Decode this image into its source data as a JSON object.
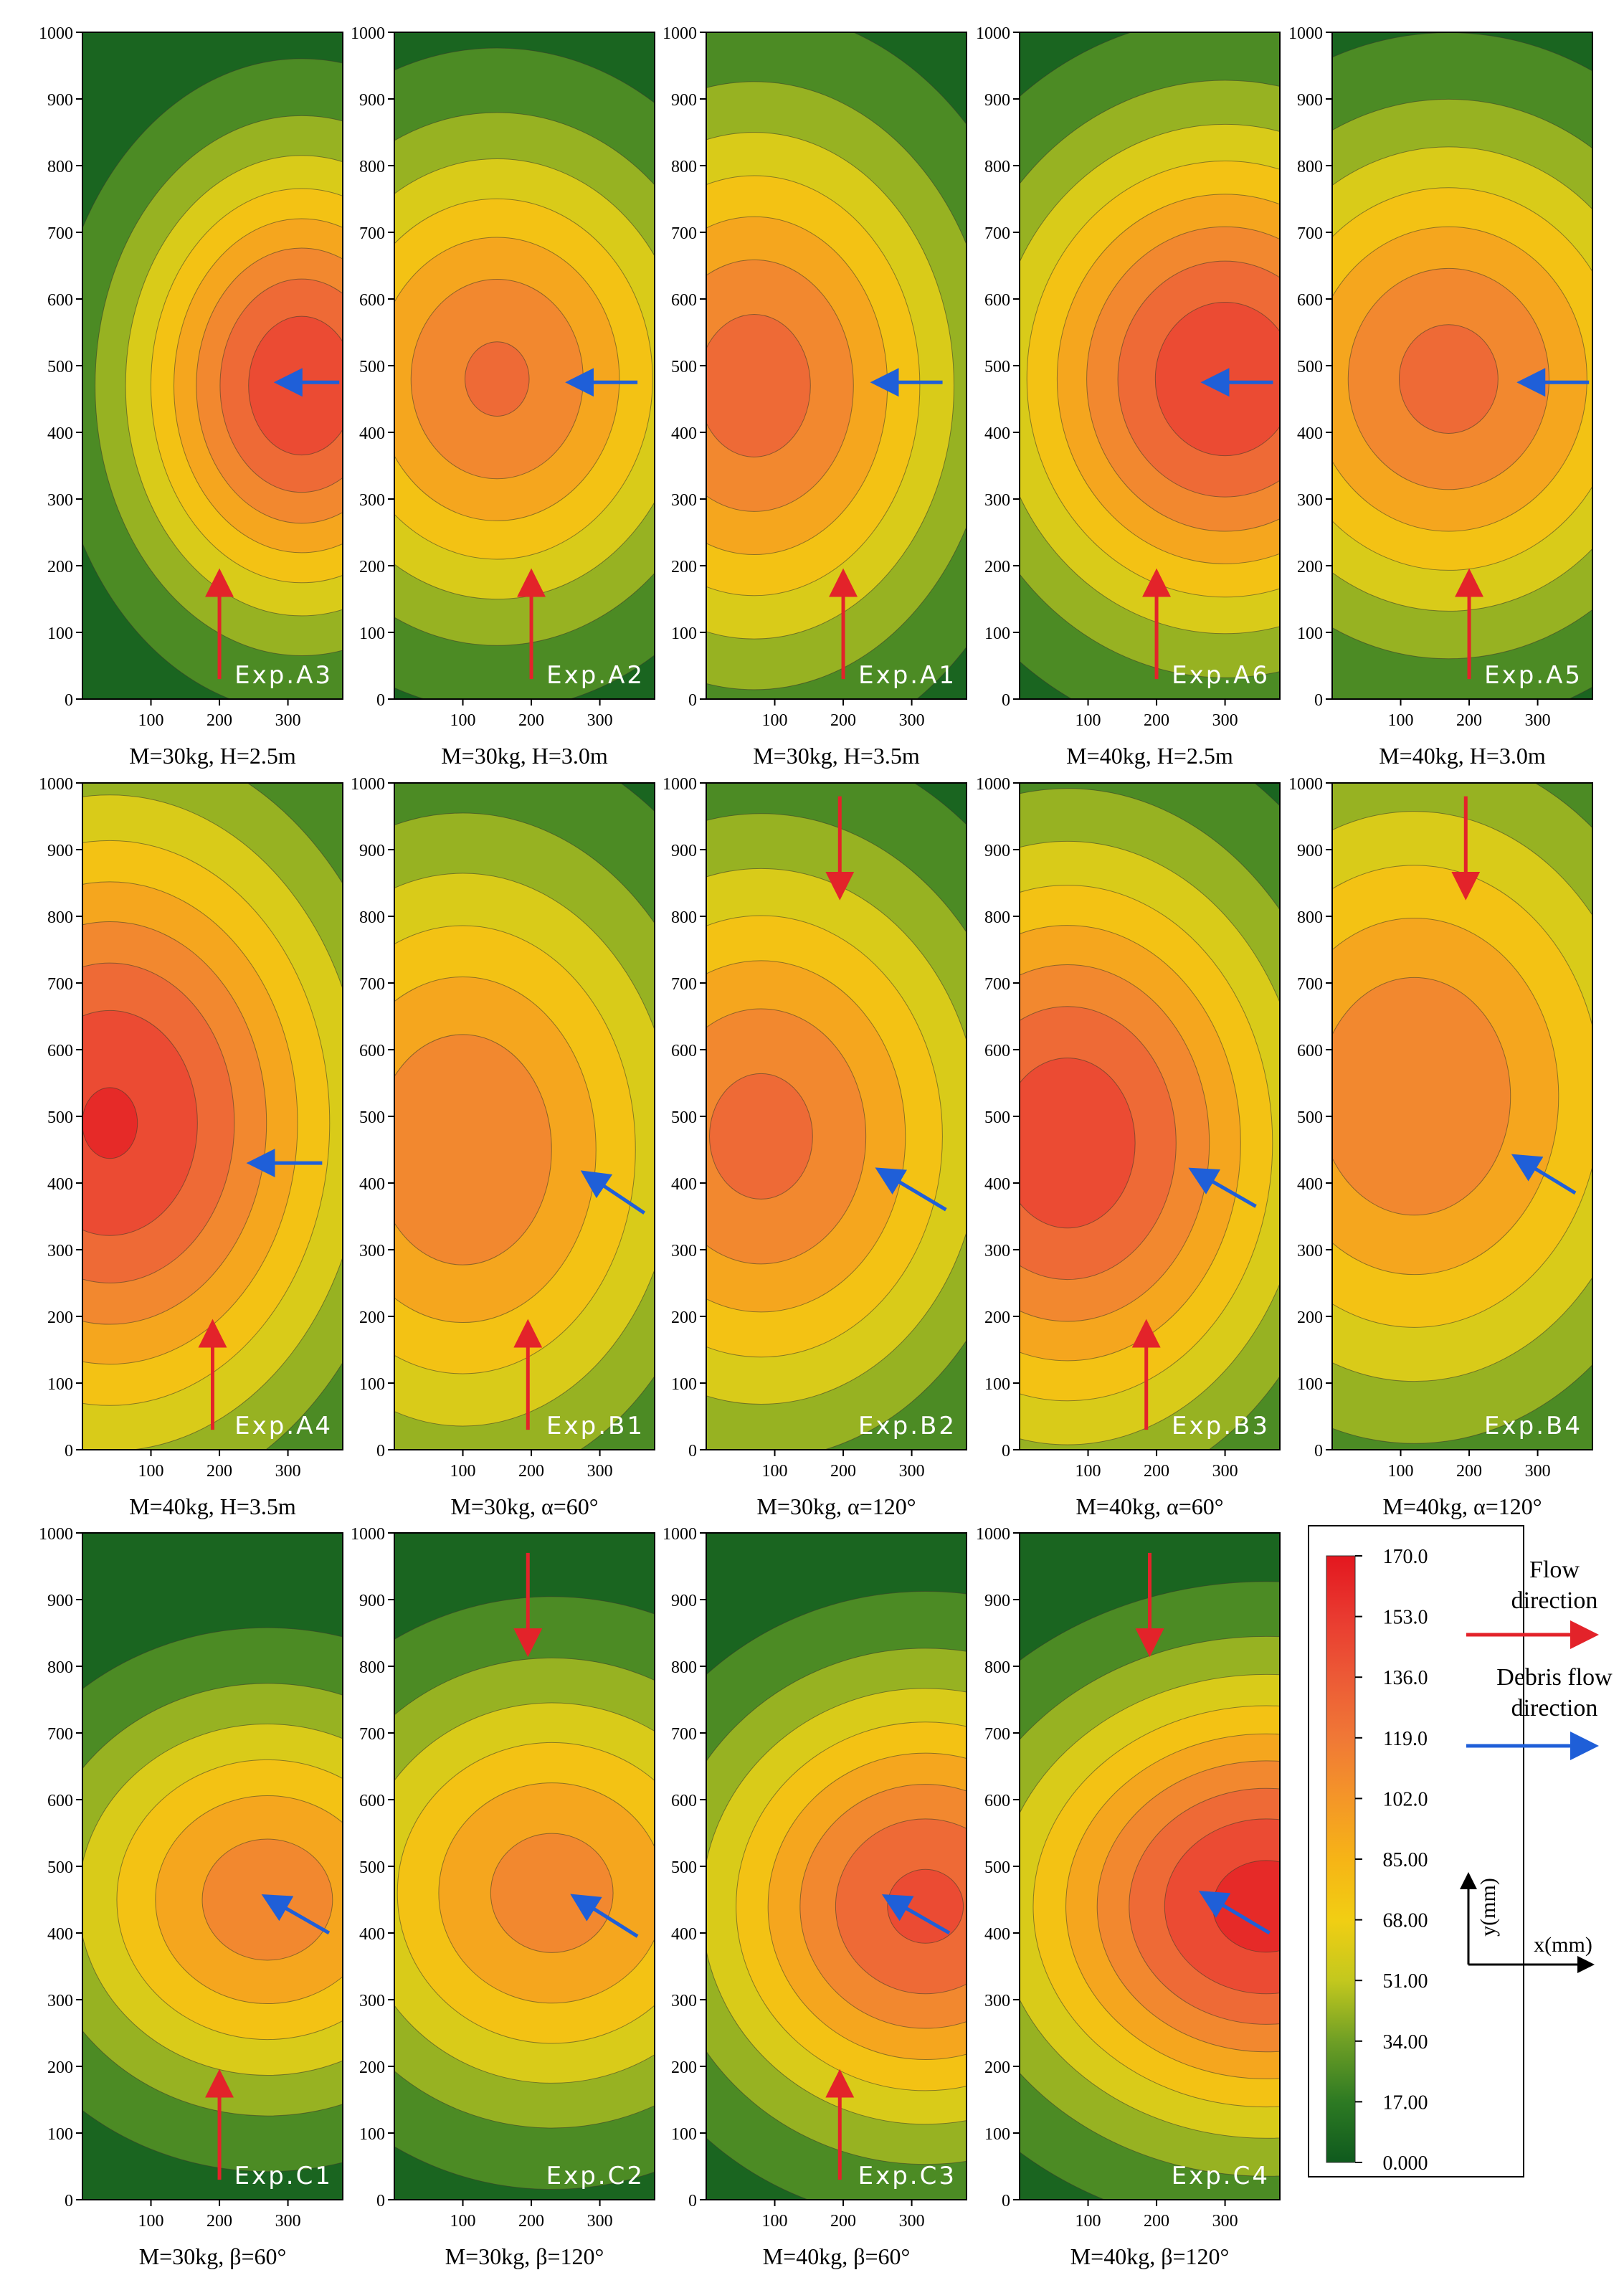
{
  "figure": {
    "colors": {
      "background": "#ffffff",
      "flow_arrow": "#e3232a",
      "debris_arrow": "#1f5fd8",
      "axis": "#000000",
      "contour_line": "#3a3a2a"
    }
  },
  "chart_data": [
    {
      "type": "heatmap",
      "panel_label": "Exp.A3",
      "caption": "M=30kg,  H=2.5m",
      "xlim": [
        0,
        380
      ],
      "ylim": [
        0,
        1000
      ],
      "xticks": [
        100,
        200,
        300
      ],
      "yticks": [
        0,
        100,
        200,
        300,
        400,
        500,
        600,
        700,
        800,
        900,
        1000
      ],
      "peak_center": [
        320,
        470
      ],
      "peak_value": 150,
      "spread": [
        175,
        235
      ],
      "flow_arrow": {
        "direction": "up",
        "x": 200,
        "from_y": 30,
        "to_y": 180
      },
      "debris_arrow": {
        "from": [
          375,
          475
        ],
        "to": [
          295,
          475
        ]
      }
    },
    {
      "type": "heatmap",
      "panel_label": "Exp.A2",
      "caption": "M=30kg,  H=3.0m",
      "xlim": [
        0,
        380
      ],
      "ylim": [
        0,
        1000
      ],
      "xticks": [
        100,
        200,
        300
      ],
      "yticks": [
        0,
        100,
        200,
        300,
        400,
        500,
        600,
        700,
        800,
        900,
        1000
      ],
      "peak_center": [
        150,
        480
      ],
      "peak_value": 122,
      "spread": [
        210,
        250
      ],
      "flow_arrow": {
        "direction": "up",
        "x": 200,
        "from_y": 30,
        "to_y": 180
      },
      "debris_arrow": {
        "from": [
          355,
          475
        ],
        "to": [
          265,
          475
        ]
      }
    },
    {
      "type": "heatmap",
      "panel_label": "Exp.A1",
      "caption": "M=30kg,  H=3.5m",
      "xlim": [
        0,
        380
      ],
      "ylim": [
        0,
        1000
      ],
      "xticks": [
        100,
        200,
        300
      ],
      "yticks": [
        0,
        100,
        200,
        300,
        400,
        500,
        600,
        700,
        800,
        900,
        1000
      ],
      "peak_center": [
        70,
        470
      ],
      "peak_value": 128,
      "spread": [
        215,
        280
      ],
      "flow_arrow": {
        "direction": "up",
        "x": 200,
        "from_y": 30,
        "to_y": 180
      },
      "debris_arrow": {
        "from": [
          345,
          475
        ],
        "to": [
          255,
          475
        ]
      }
    },
    {
      "type": "heatmap",
      "panel_label": "Exp.A6",
      "caption": "M=40kg,  H=2.5m",
      "xlim": [
        0,
        380
      ],
      "ylim": [
        0,
        1000
      ],
      "xticks": [
        100,
        200,
        300
      ],
      "yticks": [
        0,
        100,
        200,
        300,
        400,
        500,
        600,
        700,
        800,
        900,
        1000
      ],
      "peak_center": [
        300,
        480
      ],
      "peak_value": 150,
      "spread": [
        230,
        260
      ],
      "flow_arrow": {
        "direction": "up",
        "x": 200,
        "from_y": 30,
        "to_y": 180
      },
      "debris_arrow": {
        "from": [
          370,
          475
        ],
        "to": [
          280,
          475
        ]
      }
    },
    {
      "type": "heatmap",
      "panel_label": "Exp.A5",
      "caption": "M=40kg,  H=3.0m",
      "xlim": [
        0,
        380
      ],
      "ylim": [
        0,
        1000
      ],
      "xticks": [
        100,
        200,
        300
      ],
      "yticks": [
        0,
        100,
        200,
        300,
        400,
        500,
        600,
        700,
        800,
        900,
        1000
      ],
      "peak_center": [
        170,
        480
      ],
      "peak_value": 125,
      "spread": [
        230,
        260
      ],
      "flow_arrow": {
        "direction": "up",
        "x": 200,
        "from_y": 30,
        "to_y": 180
      },
      "debris_arrow": {
        "from": [
          375,
          475
        ],
        "to": [
          285,
          475
        ]
      }
    },
    {
      "type": "heatmap",
      "panel_label": "Exp.A4",
      "caption": "M=40kg,  H=3.5m",
      "xlim": [
        0,
        380
      ],
      "ylim": [
        0,
        1000
      ],
      "xticks": [
        100,
        200,
        300
      ],
      "yticks": [
        0,
        100,
        200,
        300,
        400,
        500,
        600,
        700,
        800,
        900,
        1000
      ],
      "peak_center": [
        40,
        490
      ],
      "peak_value": 155,
      "spread": [
        250,
        330
      ],
      "flow_arrow": {
        "direction": "up",
        "x": 190,
        "from_y": 30,
        "to_y": 180
      },
      "debris_arrow": {
        "from": [
          350,
          430
        ],
        "to": [
          255,
          430
        ]
      }
    },
    {
      "type": "heatmap",
      "panel_label": "Exp.B1",
      "caption": "M=30kg,  α=60°",
      "xlim": [
        0,
        380
      ],
      "ylim": [
        0,
        1000
      ],
      "xticks": [
        100,
        200,
        300
      ],
      "yticks": [
        0,
        100,
        200,
        300,
        400,
        500,
        600,
        700,
        800,
        900,
        1000
      ],
      "peak_center": [
        100,
        450
      ],
      "peak_value": 118,
      "spread": [
        240,
        320
      ],
      "flow_arrow": {
        "direction": "up",
        "x": 195,
        "from_y": 30,
        "to_y": 180
      },
      "debris_arrow": {
        "from": [
          365,
          355
        ],
        "to": [
          285,
          410
        ]
      }
    },
    {
      "type": "heatmap",
      "panel_label": "Exp.B2",
      "caption": "M=30kg,  α=120°",
      "xlim": [
        0,
        380
      ],
      "ylim": [
        0,
        1000
      ],
      "xticks": [
        100,
        200,
        300
      ],
      "yticks": [
        0,
        100,
        200,
        300,
        400,
        500,
        600,
        700,
        800,
        900,
        1000
      ],
      "peak_center": [
        80,
        470
      ],
      "peak_value": 125,
      "spread": [
        240,
        300
      ],
      "flow_arrow": {
        "direction": "down",
        "x": 195,
        "from_y": 980,
        "to_y": 840
      },
      "debris_arrow": {
        "from": [
          350,
          360
        ],
        "to": [
          260,
          415
        ]
      }
    },
    {
      "type": "heatmap",
      "panel_label": "Exp.B3",
      "caption": "M=40kg,  α=60°",
      "xlim": [
        0,
        380
      ],
      "ylim": [
        0,
        1000
      ],
      "xticks": [
        100,
        200,
        300
      ],
      "yticks": [
        0,
        100,
        200,
        300,
        400,
        500,
        600,
        700,
        800,
        900,
        1000
      ],
      "peak_center": [
        70,
        460
      ],
      "peak_value": 148,
      "spread": [
        240,
        310
      ],
      "flow_arrow": {
        "direction": "up",
        "x": 185,
        "from_y": 30,
        "to_y": 180
      },
      "debris_arrow": {
        "from": [
          345,
          365
        ],
        "to": [
          260,
          415
        ]
      }
    },
    {
      "type": "heatmap",
      "panel_label": "Exp.B4",
      "caption": "M=40kg,  α=120°",
      "xlim": [
        0,
        380
      ],
      "ylim": [
        0,
        1000
      ],
      "xticks": [
        100,
        200,
        300
      ],
      "yticks": [
        0,
        100,
        200,
        300,
        400,
        500,
        600,
        700,
        800,
        900,
        1000
      ],
      "peak_center": [
        120,
        530
      ],
      "peak_value": 118,
      "spread": [
        260,
        330
      ],
      "flow_arrow": {
        "direction": "down",
        "x": 195,
        "from_y": 980,
        "to_y": 840
      },
      "debris_arrow": {
        "from": [
          355,
          385
        ],
        "to": [
          275,
          435
        ]
      }
    },
    {
      "type": "heatmap",
      "panel_label": "Exp.C1",
      "caption": "M=30kg,  β=60°",
      "xlim": [
        0,
        380
      ],
      "ylim": [
        0,
        1000
      ],
      "xticks": [
        100,
        200,
        300
      ],
      "yticks": [
        0,
        100,
        200,
        300,
        400,
        500,
        600,
        700,
        800,
        900,
        1000
      ],
      "peak_center": [
        270,
        450
      ],
      "peak_value": 112,
      "spread": [
        220,
        210
      ],
      "flow_arrow": {
        "direction": "up",
        "x": 200,
        "from_y": 30,
        "to_y": 180
      },
      "debris_arrow": {
        "from": [
          360,
          400
        ],
        "to": [
          275,
          450
        ]
      }
    },
    {
      "type": "heatmap",
      "panel_label": "Exp.C2",
      "caption": "M=30kg,  β=120°",
      "xlim": [
        0,
        380
      ],
      "ylim": [
        0,
        1000
      ],
      "xticks": [
        100,
        200,
        300
      ],
      "yticks": [
        0,
        100,
        200,
        300,
        400,
        500,
        600,
        700,
        800,
        900,
        1000
      ],
      "peak_center": [
        230,
        460
      ],
      "peak_value": 110,
      "spread": [
        230,
        230
      ],
      "flow_arrow": {
        "direction": "down",
        "x": 195,
        "from_y": 970,
        "to_y": 830
      },
      "debris_arrow": {
        "from": [
          355,
          395
        ],
        "to": [
          270,
          450
        ]
      }
    },
    {
      "type": "heatmap",
      "panel_label": "Exp.C3",
      "caption": "M=40kg,  β=60°",
      "xlim": [
        0,
        380
      ],
      "ylim": [
        0,
        1000
      ],
      "xticks": [
        100,
        200,
        300
      ],
      "yticks": [
        0,
        100,
        200,
        300,
        400,
        500,
        600,
        700,
        800,
        900,
        1000
      ],
      "peak_center": [
        320,
        440
      ],
      "peak_value": 140,
      "spread": [
        230,
        230
      ],
      "flow_arrow": {
        "direction": "up",
        "x": 195,
        "from_y": 30,
        "to_y": 180
      },
      "debris_arrow": {
        "from": [
          355,
          400
        ],
        "to": [
          270,
          450
        ]
      }
    },
    {
      "type": "heatmap",
      "panel_label": "Exp.C4",
      "caption": "M=40kg,  β=120°",
      "xlim": [
        0,
        380
      ],
      "ylim": [
        0,
        1000
      ],
      "xticks": [
        100,
        200,
        300
      ],
      "yticks": [
        0,
        100,
        200,
        300,
        400,
        500,
        600,
        700,
        800,
        900,
        1000
      ],
      "peak_center": [
        360,
        440
      ],
      "peak_value": 160,
      "spread": [
        260,
        230
      ],
      "flow_arrow": {
        "direction": "down",
        "x": 190,
        "from_y": 970,
        "to_y": 830
      },
      "debris_arrow": {
        "from": [
          365,
          400
        ],
        "to": [
          275,
          455
        ]
      }
    }
  ],
  "colorbar": {
    "min": 0,
    "max": 170,
    "tick_labels": [
      "170.0",
      "153.0",
      "136.0",
      "119.0",
      "102.0",
      "85.00",
      "68.00",
      "51.00",
      "34.00",
      "17.00",
      "0.000"
    ],
    "stops": [
      {
        "v": 0,
        "c": "#0f5a1e"
      },
      {
        "v": 17,
        "c": "#2d7a23"
      },
      {
        "v": 34,
        "c": "#6f9f25"
      },
      {
        "v": 51,
        "c": "#c3c81e"
      },
      {
        "v": 68,
        "c": "#f1ce13"
      },
      {
        "v": 85,
        "c": "#f6b416"
      },
      {
        "v": 102,
        "c": "#f49628"
      },
      {
        "v": 119,
        "c": "#f07836"
      },
      {
        "v": 136,
        "c": "#ec5a36"
      },
      {
        "v": 153,
        "c": "#e93a30"
      },
      {
        "v": 170,
        "c": "#e3171f"
      }
    ]
  },
  "legend": {
    "flow_label_line1": "Flow",
    "flow_label_line2": "direction",
    "debris_label_line1": "Debris flow",
    "debris_label_line2": "direction",
    "y_axis_label": "y(mm)",
    "x_axis_label": "x(mm)"
  }
}
